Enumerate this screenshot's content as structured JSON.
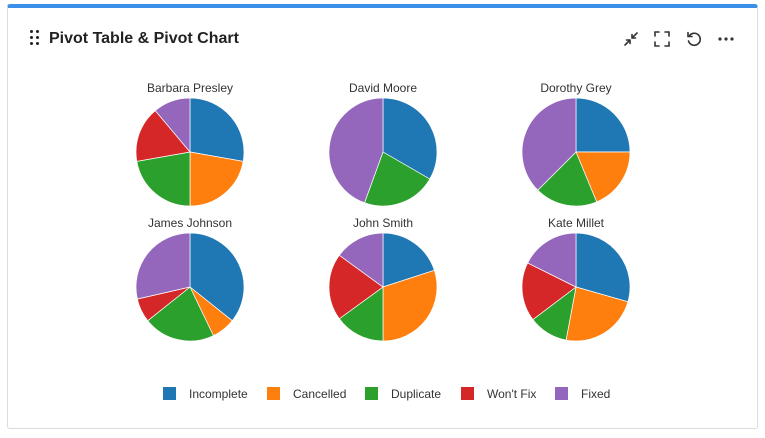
{
  "widget": {
    "title": "Pivot Table & Pivot Chart",
    "toolbar": [
      {
        "name": "collapse-icon",
        "label": "Collapse"
      },
      {
        "name": "expand-icon",
        "label": "Expand"
      },
      {
        "name": "refresh-icon",
        "label": "Refresh"
      },
      {
        "name": "more-icon",
        "label": "More"
      }
    ]
  },
  "colors": {
    "accent": "#3b8fe8",
    "Incomplete": "#1f77b4",
    "Cancelled": "#ff7f0e",
    "Duplicate": "#2ca02c",
    "Won't Fix": "#d62728",
    "Fixed": "#9467bd"
  },
  "chart_data": {
    "type": "pie",
    "categories": [
      "Incomplete",
      "Cancelled",
      "Duplicate",
      "Won't Fix",
      "Fixed"
    ],
    "legend_position": "bottom",
    "series": [
      {
        "name": "Barbara Presley",
        "values": [
          5,
          4,
          4,
          3,
          2
        ]
      },
      {
        "name": "David Moore",
        "values": [
          6,
          0,
          4,
          0,
          8
        ]
      },
      {
        "name": "Dorothy Grey",
        "values": [
          4,
          3,
          3,
          0,
          6
        ]
      },
      {
        "name": "James Johnson",
        "values": [
          5,
          1,
          3,
          1,
          4
        ]
      },
      {
        "name": "John Smith",
        "values": [
          4,
          6,
          3,
          4,
          3
        ]
      },
      {
        "name": "Kate Millet",
        "values": [
          5,
          4,
          2,
          3,
          3
        ]
      }
    ]
  }
}
